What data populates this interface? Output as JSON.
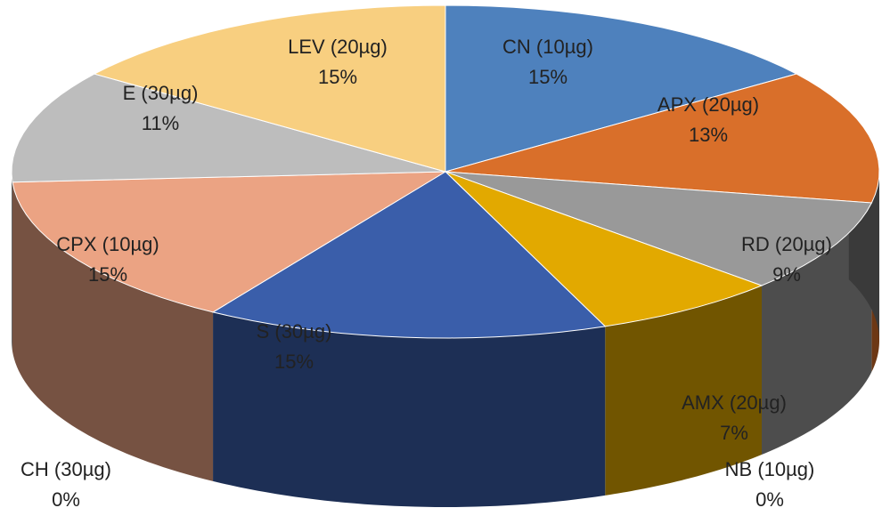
{
  "chart_data": {
    "type": "pie",
    "title": "",
    "three_d": true,
    "legend": "none",
    "slices": [
      {
        "name": "CN (10µg)",
        "value": 15,
        "label": "15%",
        "color": "#4E81BD"
      },
      {
        "name": "APX (20µg)",
        "value": 13,
        "label": "13%",
        "color": "#D96F2A"
      },
      {
        "name": "RD (20µg)",
        "value": 9,
        "label": "9%",
        "color": "#999999"
      },
      {
        "name": "AMX (20µg)",
        "value": 7,
        "label": "7%",
        "color": "#E2A900"
      },
      {
        "name": "NB (10µg)",
        "value": 0,
        "label": "0%",
        "color": "#5A4A10"
      },
      {
        "name": "S (30µg)",
        "value": 15,
        "label": "15%",
        "color": "#3A5EAA"
      },
      {
        "name": "CH (30µg)",
        "value": 0,
        "label": "0%",
        "color": "#C07860"
      },
      {
        "name": "CPX (10µg)",
        "value": 15,
        "label": "15%",
        "color": "#EBA383"
      },
      {
        "name": "E (30µg)",
        "value": 11,
        "label": "11%",
        "color": "#BDBDBD"
      },
      {
        "name": "LEV (20µg)",
        "value": 15,
        "label": "15%",
        "color": "#F8CF80"
      }
    ]
  }
}
